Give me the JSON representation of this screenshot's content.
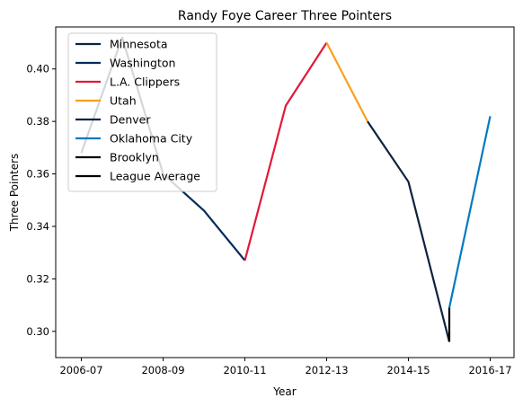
{
  "chart_data": {
    "type": "line",
    "title": "Randy Foye Career Three Pointers",
    "xlabel": "Year",
    "ylabel": "Three Pointers",
    "x_tick_labels": [
      "2006-07",
      "2008-09",
      "2010-11",
      "2012-13",
      "2014-15",
      "2016-17"
    ],
    "y_ticks": [
      0.3,
      0.32,
      0.34,
      0.36,
      0.38,
      0.4
    ],
    "y_tick_labels": [
      "0.30",
      "0.32",
      "0.34",
      "0.36",
      "0.38",
      "0.40"
    ],
    "ylim": [
      0.29,
      0.416
    ],
    "grid": false,
    "legend_position": "top-left",
    "series": [
      {
        "name": "Minnesota",
        "color": "#0c2340",
        "points": [
          [
            2006,
            0.368
          ],
          [
            2007,
            0.412
          ],
          [
            2008,
            0.36
          ]
        ]
      },
      {
        "name": "Washington",
        "color": "#002b5c",
        "points": [
          [
            2008,
            0.36
          ],
          [
            2009,
            0.346
          ],
          [
            2010,
            0.327
          ]
        ]
      },
      {
        "name": "L.A. Clippers",
        "color": "#e31837",
        "points": [
          [
            2010,
            0.327
          ],
          [
            2011,
            0.386
          ],
          [
            2012,
            0.41
          ]
        ]
      },
      {
        "name": "Utah",
        "color": "#f9a01b",
        "points": [
          [
            2012,
            0.41
          ],
          [
            2013,
            0.38
          ]
        ]
      },
      {
        "name": "Denver",
        "color": "#0e2240",
        "points": [
          [
            2013,
            0.38
          ],
          [
            2014,
            0.357
          ],
          [
            2015,
            0.296
          ]
        ]
      },
      {
        "name": "Oklahoma City",
        "color": "#007ac1",
        "points": [
          [
            2015,
            0.309
          ],
          [
            2016,
            0.382
          ]
        ]
      },
      {
        "name": "Brooklyn",
        "color": "#000000",
        "points": [
          [
            2015,
            0.296
          ],
          [
            2015,
            0.309
          ]
        ]
      },
      {
        "name": "League Average",
        "color": "#000000",
        "points": []
      }
    ]
  }
}
